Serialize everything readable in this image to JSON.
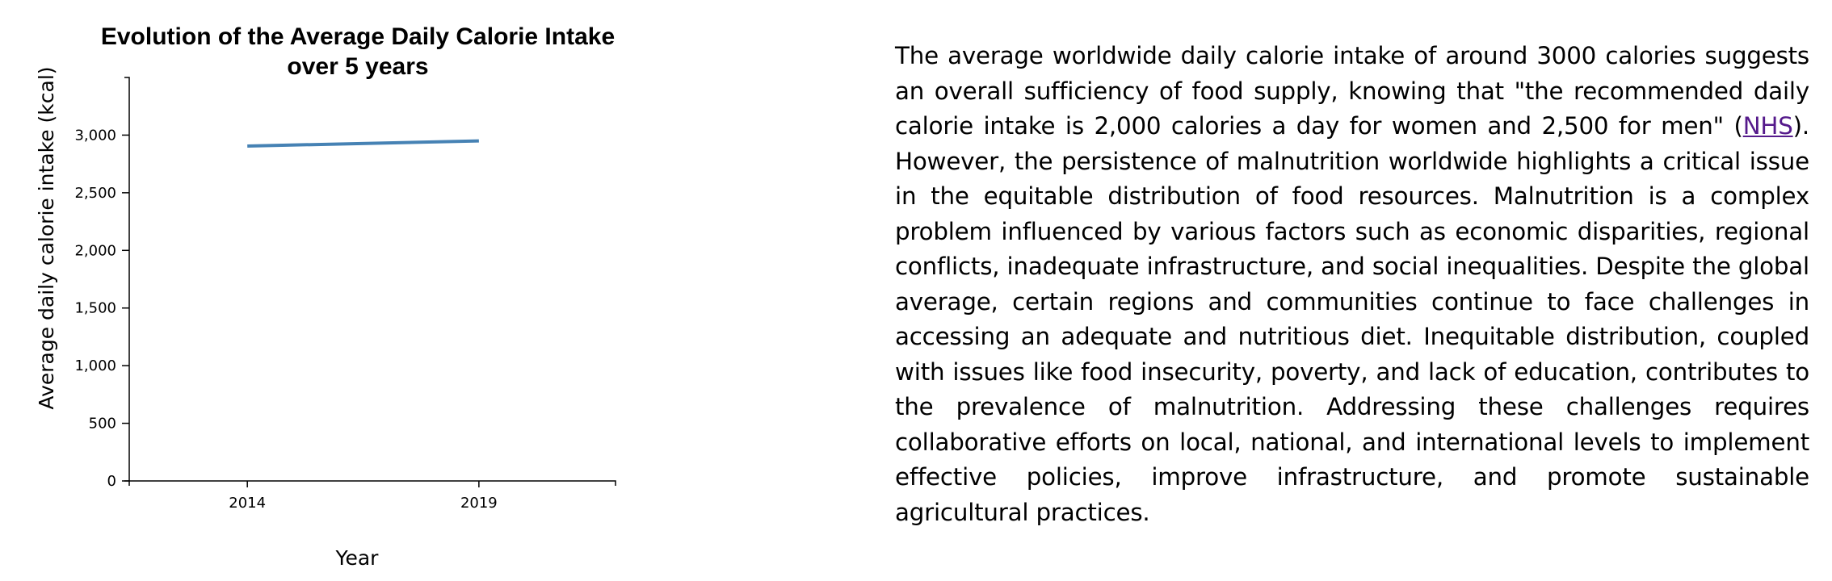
{
  "chart_data": {
    "type": "line",
    "title": "Evolution of the Average Daily Calorie Intake over 5 years",
    "title_lines": [
      "Evolution of the Average Daily Calorie Intake",
      "over 5 years"
    ],
    "xlabel": "Year",
    "ylabel": "Average daily calorie intake (kcal)",
    "x": [
      2014,
      2019
    ],
    "values": [
      2905,
      2950
    ],
    "xlim": [
      2011.45,
      2021.95
    ],
    "ylim": [
      0,
      3500
    ],
    "x_ticks": [
      2014,
      2019
    ],
    "x_tick_labels": [
      "2014",
      "2019"
    ],
    "y_ticks": [
      0,
      500,
      1000,
      1500,
      2000,
      2500,
      3000
    ],
    "y_tick_labels": [
      "0",
      "500",
      "1,000",
      "1,500",
      "2,000",
      "2,500",
      "3,000"
    ],
    "grid": false,
    "line_color": "#4682b4"
  },
  "paragraph": {
    "before_link": "The average worldwide daily calorie intake of around 3000 calories suggests an overall sufficiency of food supply, knowing that \"the recommended daily calorie intake is 2,000 calories a day for women and 2,500 for men\" (",
    "link_text": "NHS",
    "after_link": "). However, the persistence of malnutrition worldwide highlights a critical issue in the equitable distribution of food resources. Malnutrition is a complex problem influenced by various factors such as economic disparities, regional conflicts, inadequate infrastructure, and social inequalities. Despite the global average, certain regions and communities continue to face challenges in accessing an adequate and nutritious diet. Inequitable distribution, coupled with issues like food insecurity, poverty, and lack of education, contributes to the prevalence of malnutrition. Addressing these challenges requires collaborative efforts on local, national, and international levels to implement effective policies, improve infrastructure, and promote sustainable agricultural practices."
  }
}
